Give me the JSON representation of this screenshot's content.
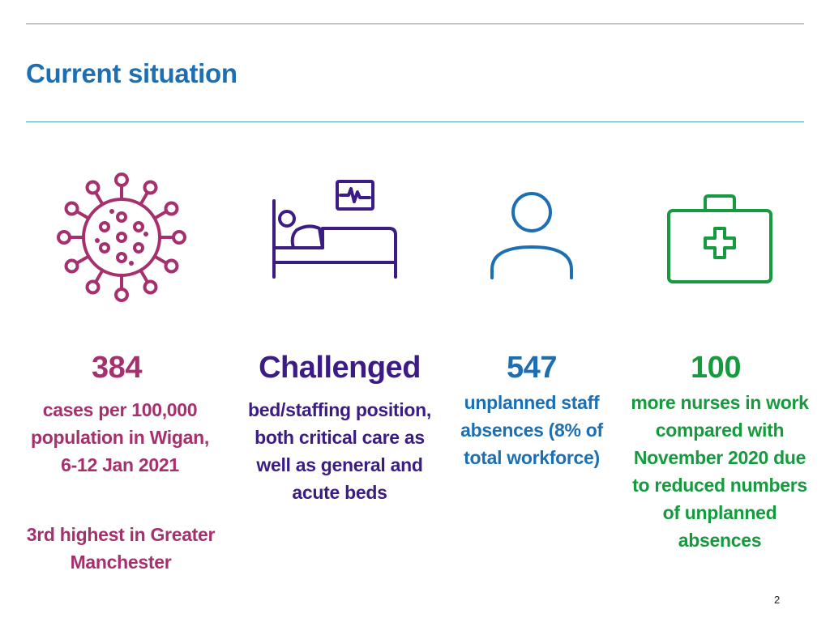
{
  "slide": {
    "title": "Current situation",
    "page_number": "2"
  },
  "stats": [
    {
      "icon": "virus-icon",
      "color": "#a6306d",
      "value": "384",
      "text": "cases per 100,000 population in Wigan, 6-12 Jan 2021",
      "extra": "3rd highest in Greater Manchester"
    },
    {
      "icon": "hospital-bed-icon",
      "color": "#3b1c84",
      "value": "Challenged",
      "text": "bed/staffing position, both critical care as well as general and acute beds"
    },
    {
      "icon": "person-icon",
      "color": "#1d6fb3",
      "value": "547",
      "text": "unplanned staff absences (8% of total workforce)"
    },
    {
      "icon": "medical-kit-icon",
      "color": "#169a3e",
      "value": "100",
      "text": "more nurses in work compared with November 2020 due to reduced numbers of unplanned absences"
    }
  ]
}
